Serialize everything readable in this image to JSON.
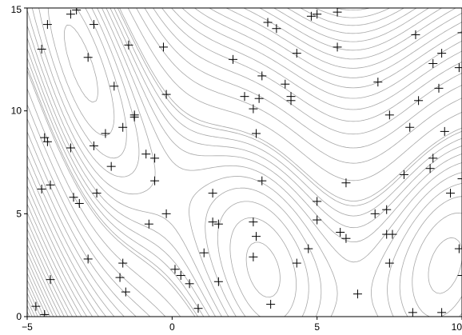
{
  "chart_data": {
    "type": "scatter",
    "title": "",
    "xlabel": "",
    "ylabel": "",
    "xlim": [
      -5,
      10
    ],
    "ylim": [
      0,
      15
    ],
    "x_ticks": [
      -5,
      0,
      5,
      10
    ],
    "y_ticks": [
      0,
      5,
      10,
      15
    ],
    "x_tick_labels": [
      "−5",
      "0",
      "5",
      "10"
    ],
    "y_tick_labels": [
      "0",
      "5",
      "10",
      "15"
    ],
    "grid": false,
    "background": "contour-lines",
    "contour_color": "#a8a8a8",
    "marker": "plus",
    "marker_color": "#000000",
    "points": [
      [
        -4.7,
        0.5
      ],
      [
        -4.4,
        0.1
      ],
      [
        -4.2,
        1.8
      ],
      [
        -2.9,
        2.8
      ],
      [
        -1.7,
        2.6
      ],
      [
        -1.8,
        1.9
      ],
      [
        -1.6,
        1.2
      ],
      [
        -4.5,
        6.2
      ],
      [
        -4.2,
        6.4
      ],
      [
        -3.4,
        5.8
      ],
      [
        -3.2,
        5.5
      ],
      [
        -2.6,
        6.0
      ],
      [
        -4.4,
        8.7
      ],
      [
        -4.3,
        8.5
      ],
      [
        -3.5,
        8.2
      ],
      [
        -2.7,
        8.3
      ],
      [
        -2.1,
        7.3
      ],
      [
        -2.3,
        8.9
      ],
      [
        -1.7,
        9.2
      ],
      [
        -1.3,
        9.7
      ],
      [
        -1.3,
        9.8
      ],
      [
        -2.0,
        11.2
      ],
      [
        -0.2,
        10.8
      ],
      [
        -0.6,
        7.7
      ],
      [
        -0.9,
        7.9
      ],
      [
        -0.6,
        6.6
      ],
      [
        -0.2,
        5.0
      ],
      [
        -0.8,
        4.5
      ],
      [
        -4.5,
        13.0
      ],
      [
        -4.3,
        14.2
      ],
      [
        -3.5,
        14.7
      ],
      [
        -3.3,
        14.9
      ],
      [
        -2.9,
        12.6
      ],
      [
        -2.7,
        14.2
      ],
      [
        -1.5,
        13.2
      ],
      [
        -0.3,
        13.1
      ],
      [
        0.1,
        2.3
      ],
      [
        0.3,
        2.0
      ],
      [
        0.6,
        1.6
      ],
      [
        0.9,
        0.4
      ],
      [
        1.1,
        3.1
      ],
      [
        1.4,
        6.0
      ],
      [
        1.4,
        4.6
      ],
      [
        1.6,
        4.5
      ],
      [
        1.6,
        1.7
      ],
      [
        2.8,
        4.6
      ],
      [
        2.9,
        3.9
      ],
      [
        2.8,
        2.9
      ],
      [
        3.1,
        6.6
      ],
      [
        3.4,
        0.6
      ],
      [
        4.3,
        2.6
      ],
      [
        4.7,
        3.3
      ],
      [
        5.0,
        4.7
      ],
      [
        5.0,
        5.6
      ],
      [
        2.8,
        10.1
      ],
      [
        2.9,
        8.9
      ],
      [
        3.0,
        10.6
      ],
      [
        2.5,
        10.7
      ],
      [
        3.1,
        11.7
      ],
      [
        2.1,
        12.5
      ],
      [
        3.3,
        14.3
      ],
      [
        3.6,
        14.0
      ],
      [
        3.9,
        11.3
      ],
      [
        4.1,
        10.7
      ],
      [
        4.1,
        10.5
      ],
      [
        4.3,
        12.8
      ],
      [
        4.8,
        14.6
      ],
      [
        5.0,
        14.7
      ],
      [
        5.7,
        14.8
      ],
      [
        5.7,
        13.1
      ],
      [
        5.8,
        4.1
      ],
      [
        6.0,
        3.8
      ],
      [
        6.0,
        6.5
      ],
      [
        6.4,
        1.1
      ],
      [
        7.0,
        5.0
      ],
      [
        7.1,
        11.4
      ],
      [
        7.4,
        5.2
      ],
      [
        7.4,
        4.0
      ],
      [
        7.6,
        4.0
      ],
      [
        7.5,
        9.8
      ],
      [
        7.5,
        2.6
      ],
      [
        8.0,
        6.9
      ],
      [
        8.3,
        0.2
      ],
      [
        8.2,
        9.2
      ],
      [
        8.5,
        10.5
      ],
      [
        8.4,
        13.7
      ],
      [
        8.9,
        7.2
      ],
      [
        9.0,
        7.7
      ],
      [
        9.0,
        12.3
      ],
      [
        9.2,
        11.1
      ],
      [
        9.3,
        12.8
      ],
      [
        9.4,
        9.0
      ],
      [
        9.6,
        6.0
      ],
      [
        9.3,
        0.2
      ],
      [
        9.9,
        3.3
      ],
      [
        9.9,
        12.1
      ],
      [
        10.0,
        13.8
      ],
      [
        10.0,
        6.7
      ],
      [
        10.0,
        2.0
      ]
    ]
  }
}
